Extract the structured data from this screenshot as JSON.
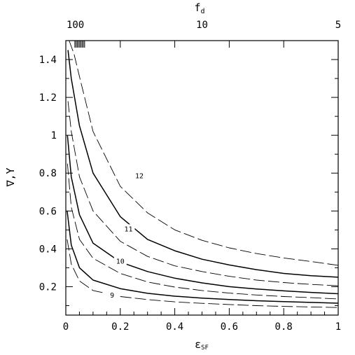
{
  "chart_data": {
    "type": "line",
    "xlabel": "ε_SF",
    "ylabel": "∇,Υ",
    "top_axis_label": "f_d",
    "xlim": [
      0,
      1
    ],
    "ylim": [
      0.05,
      1.5
    ],
    "x_ticks": [
      "0",
      "0.2",
      "0.4",
      "0.6",
      "0.8",
      "1"
    ],
    "y_ticks": [
      "0.2",
      "0.4",
      "0.6",
      "0.8",
      "1",
      "1.2",
      "1.4"
    ],
    "top_ticks": [
      "100",
      "10",
      "5"
    ],
    "grid": false,
    "legend": "none",
    "series": [
      {
        "name": "12",
        "style": "dashed",
        "x": [
          0.012,
          0.03,
          0.05,
          0.1,
          0.2,
          0.3,
          0.4,
          0.5,
          0.6,
          0.7,
          0.8,
          0.9,
          1.0
        ],
        "values": [
          1.5,
          1.43,
          1.31,
          1.02,
          0.73,
          0.59,
          0.5,
          0.445,
          0.405,
          0.375,
          0.352,
          0.333,
          0.313
        ]
      },
      {
        "name": "",
        "style": "solid",
        "x": [
          0.008,
          0.02,
          0.05,
          0.1,
          0.2,
          0.3,
          0.4,
          0.5,
          0.6,
          0.7,
          0.8,
          0.9,
          1.0
        ],
        "values": [
          1.45,
          1.3,
          1.05,
          0.8,
          0.57,
          0.45,
          0.39,
          0.345,
          0.315,
          0.29,
          0.27,
          0.258,
          0.25
        ]
      },
      {
        "name": "11",
        "style": "dashed",
        "x": [
          0.008,
          0.02,
          0.05,
          0.1,
          0.2,
          0.3,
          0.4,
          0.5,
          0.6,
          0.7,
          0.8,
          0.9,
          1.0
        ],
        "values": [
          1.18,
          1.02,
          0.78,
          0.6,
          0.44,
          0.36,
          0.31,
          0.28,
          0.255,
          0.235,
          0.222,
          0.212,
          0.205
        ]
      },
      {
        "name": "",
        "style": "solid",
        "x": [
          0.006,
          0.02,
          0.05,
          0.1,
          0.2,
          0.3,
          0.4,
          0.5,
          0.6,
          0.7,
          0.8,
          0.9,
          1.0
        ],
        "values": [
          1.0,
          0.78,
          0.58,
          0.43,
          0.33,
          0.28,
          0.245,
          0.22,
          0.2,
          0.188,
          0.178,
          0.17,
          0.163
        ]
      },
      {
        "name": "10",
        "style": "dashed",
        "x": [
          0.006,
          0.02,
          0.05,
          0.1,
          0.2,
          0.3,
          0.4,
          0.5,
          0.6,
          0.7,
          0.8,
          0.9,
          1.0
        ],
        "values": [
          0.85,
          0.62,
          0.45,
          0.35,
          0.27,
          0.225,
          0.198,
          0.18,
          0.166,
          0.156,
          0.148,
          0.142,
          0.135
        ]
      },
      {
        "name": "",
        "style": "solid",
        "x": [
          0.005,
          0.02,
          0.05,
          0.1,
          0.2,
          0.3,
          0.4,
          0.5,
          0.6,
          0.7,
          0.8,
          0.9,
          1.0
        ],
        "values": [
          0.6,
          0.42,
          0.3,
          0.235,
          0.19,
          0.165,
          0.15,
          0.14,
          0.132,
          0.126,
          0.121,
          0.117,
          0.113
        ]
      },
      {
        "name": "9",
        "style": "dashed",
        "x": [
          0.005,
          0.02,
          0.05,
          0.1,
          0.2,
          0.3,
          0.4,
          0.5,
          0.6,
          0.7,
          0.8,
          0.9,
          1.0
        ],
        "values": [
          0.45,
          0.32,
          0.23,
          0.18,
          0.148,
          0.132,
          0.12,
          0.112,
          0.106,
          0.1,
          0.096,
          0.093,
          0.09
        ]
      }
    ],
    "annotations": [
      {
        "text": "12",
        "x": 0.27,
        "y": 0.78
      },
      {
        "text": "11",
        "x": 0.23,
        "y": 0.5
      },
      {
        "text": "10",
        "x": 0.2,
        "y": 0.33
      },
      {
        "text": "9",
        "x": 0.17,
        "y": 0.15
      }
    ]
  }
}
